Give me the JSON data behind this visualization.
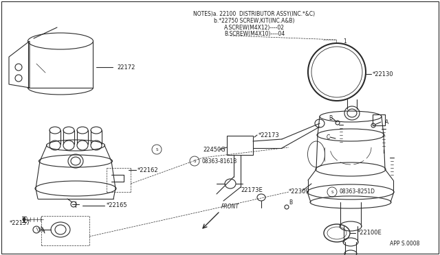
{
  "bg_color": "#ffffff",
  "line_color": "#2a2a2a",
  "text_color": "#1a1a1a",
  "title_lines": [
    "NOTES)a. 22100  DISTRIBUTOR ASSY(INC.*&C)",
    "b.*22750 SCREW,KIT(INC.A&B)",
    "A.SCREW(M4X12)----02",
    "B.SCREW(M4X10)----04"
  ],
  "app_code": "APP S.0008",
  "figsize": [
    6.4,
    3.72
  ],
  "dpi": 100
}
